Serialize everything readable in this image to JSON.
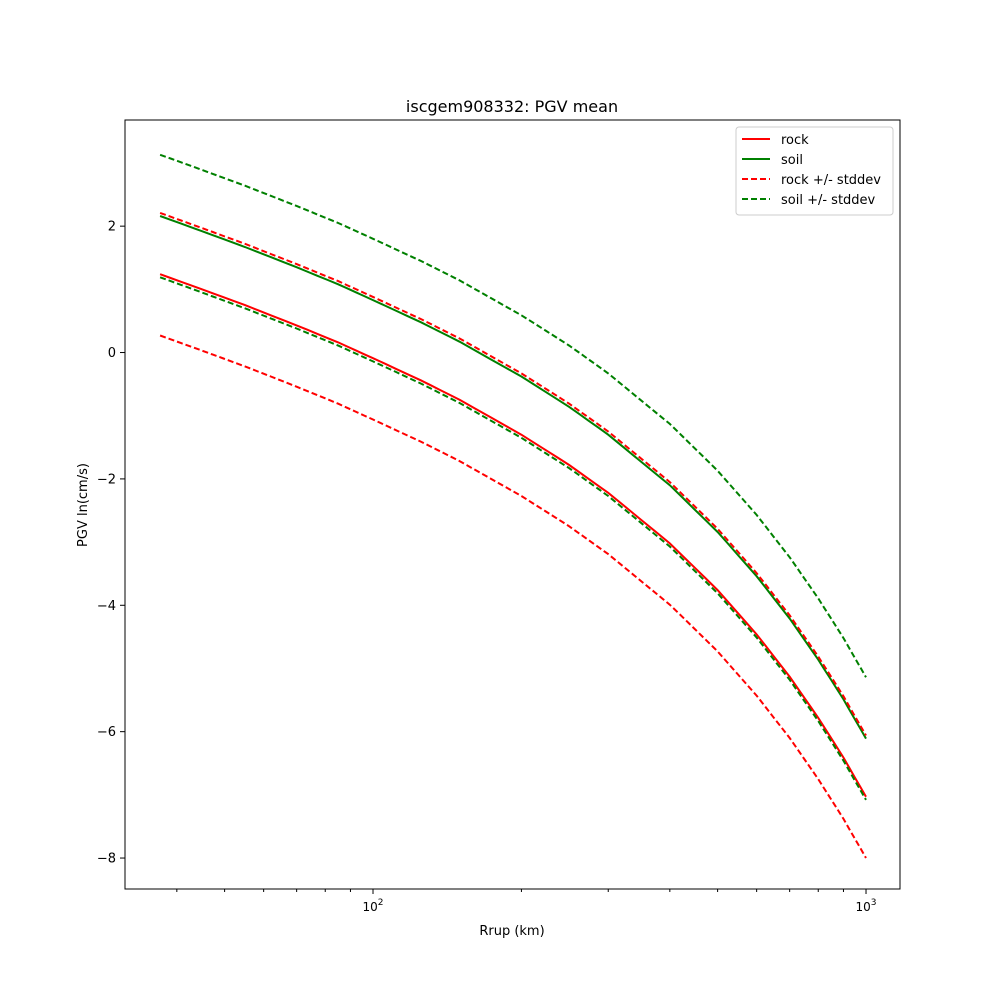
{
  "chart_data": {
    "type": "line",
    "title": "iscgem908332: PGV mean",
    "xlabel": "Rrup (km)",
    "ylabel": "PGV ln(cm/s)",
    "xscale": "log",
    "xlim": [
      31.4,
      1172
    ],
    "ylim": [
      -8.49,
      3.68
    ],
    "xticks": [
      {
        "value": 100,
        "base": "10",
        "exp": "2"
      },
      {
        "value": 1000,
        "base": "10",
        "exp": "3"
      }
    ],
    "yticks": [
      {
        "value": 2,
        "label": "2"
      },
      {
        "value": 0,
        "label": "0"
      },
      {
        "value": -2,
        "label": "−2"
      },
      {
        "value": -4,
        "label": "−4"
      },
      {
        "value": -6,
        "label": "−6"
      },
      {
        "value": -8,
        "label": "−8"
      }
    ],
    "grid": false,
    "legend_position": "top-right",
    "x": [
      37,
      45,
      55,
      70,
      85,
      100,
      125,
      150,
      200,
      250,
      300,
      400,
      500,
      600,
      700,
      800,
      900,
      1000
    ],
    "series": [
      {
        "name": "rock",
        "color": "#ff0000",
        "style": "solid",
        "values": [
          1.24,
          1.0,
          0.75,
          0.43,
          0.16,
          -0.09,
          -0.44,
          -0.75,
          -1.3,
          -1.78,
          -2.22,
          -3.02,
          -3.76,
          -4.46,
          -5.13,
          -5.78,
          -6.41,
          -7.03
        ]
      },
      {
        "name": "soil",
        "color": "#008000",
        "style": "solid",
        "values": [
          2.16,
          1.92,
          1.67,
          1.35,
          1.08,
          0.83,
          0.48,
          0.17,
          -0.38,
          -0.86,
          -1.3,
          -2.1,
          -2.84,
          -3.54,
          -4.21,
          -4.86,
          -5.49,
          -6.11
        ]
      },
      {
        "name": "rock +/- stddev",
        "color": "#ff0000",
        "style": "dashed",
        "sigma_of": "rock",
        "sigma": 0.97
      },
      {
        "name": "soil +/- stddev",
        "color": "#008000",
        "style": "dashed",
        "sigma_of": "soil",
        "sigma": 0.97
      }
    ]
  }
}
